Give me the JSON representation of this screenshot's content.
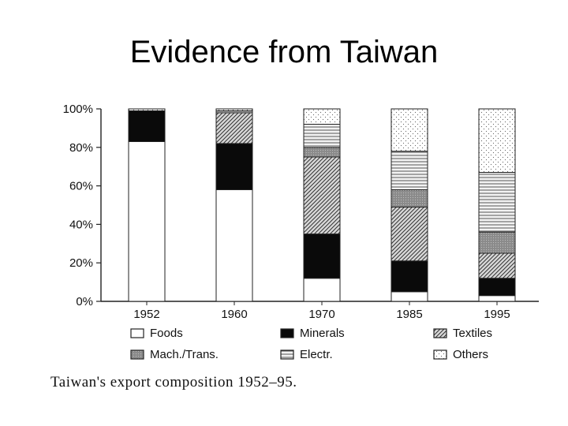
{
  "slide": {
    "title": "Evidence from Taiwan",
    "caption": "Taiwan's export composition 1952–95."
  },
  "chart_data": {
    "type": "bar",
    "stacked": true,
    "categories": [
      "1952",
      "1960",
      "1970",
      "1985",
      "1995"
    ],
    "ylim": [
      0,
      100
    ],
    "yticks": [
      "0%",
      "20%",
      "40%",
      "60%",
      "80%",
      "100%"
    ],
    "xlabel": "",
    "ylabel": "",
    "grid": false,
    "legend_position": "bottom",
    "series": [
      {
        "name": "Foods",
        "pattern": "blank",
        "values": [
          83,
          58,
          12,
          5,
          3
        ]
      },
      {
        "name": "Minerals",
        "pattern": "solid-dark",
        "values": [
          16,
          24,
          23,
          16,
          9
        ]
      },
      {
        "name": "Textiles",
        "pattern": "diagonal",
        "values": [
          0,
          16,
          40,
          28,
          13
        ]
      },
      {
        "name": "Mach./Trans.",
        "pattern": "dotted-gray",
        "values": [
          0,
          0,
          5,
          9,
          11
        ]
      },
      {
        "name": "Electr.",
        "pattern": "horizontal",
        "values": [
          0,
          1,
          12,
          20,
          31
        ]
      },
      {
        "name": "Others",
        "pattern": "stipple",
        "values": [
          1,
          1,
          8,
          22,
          33
        ]
      }
    ]
  }
}
